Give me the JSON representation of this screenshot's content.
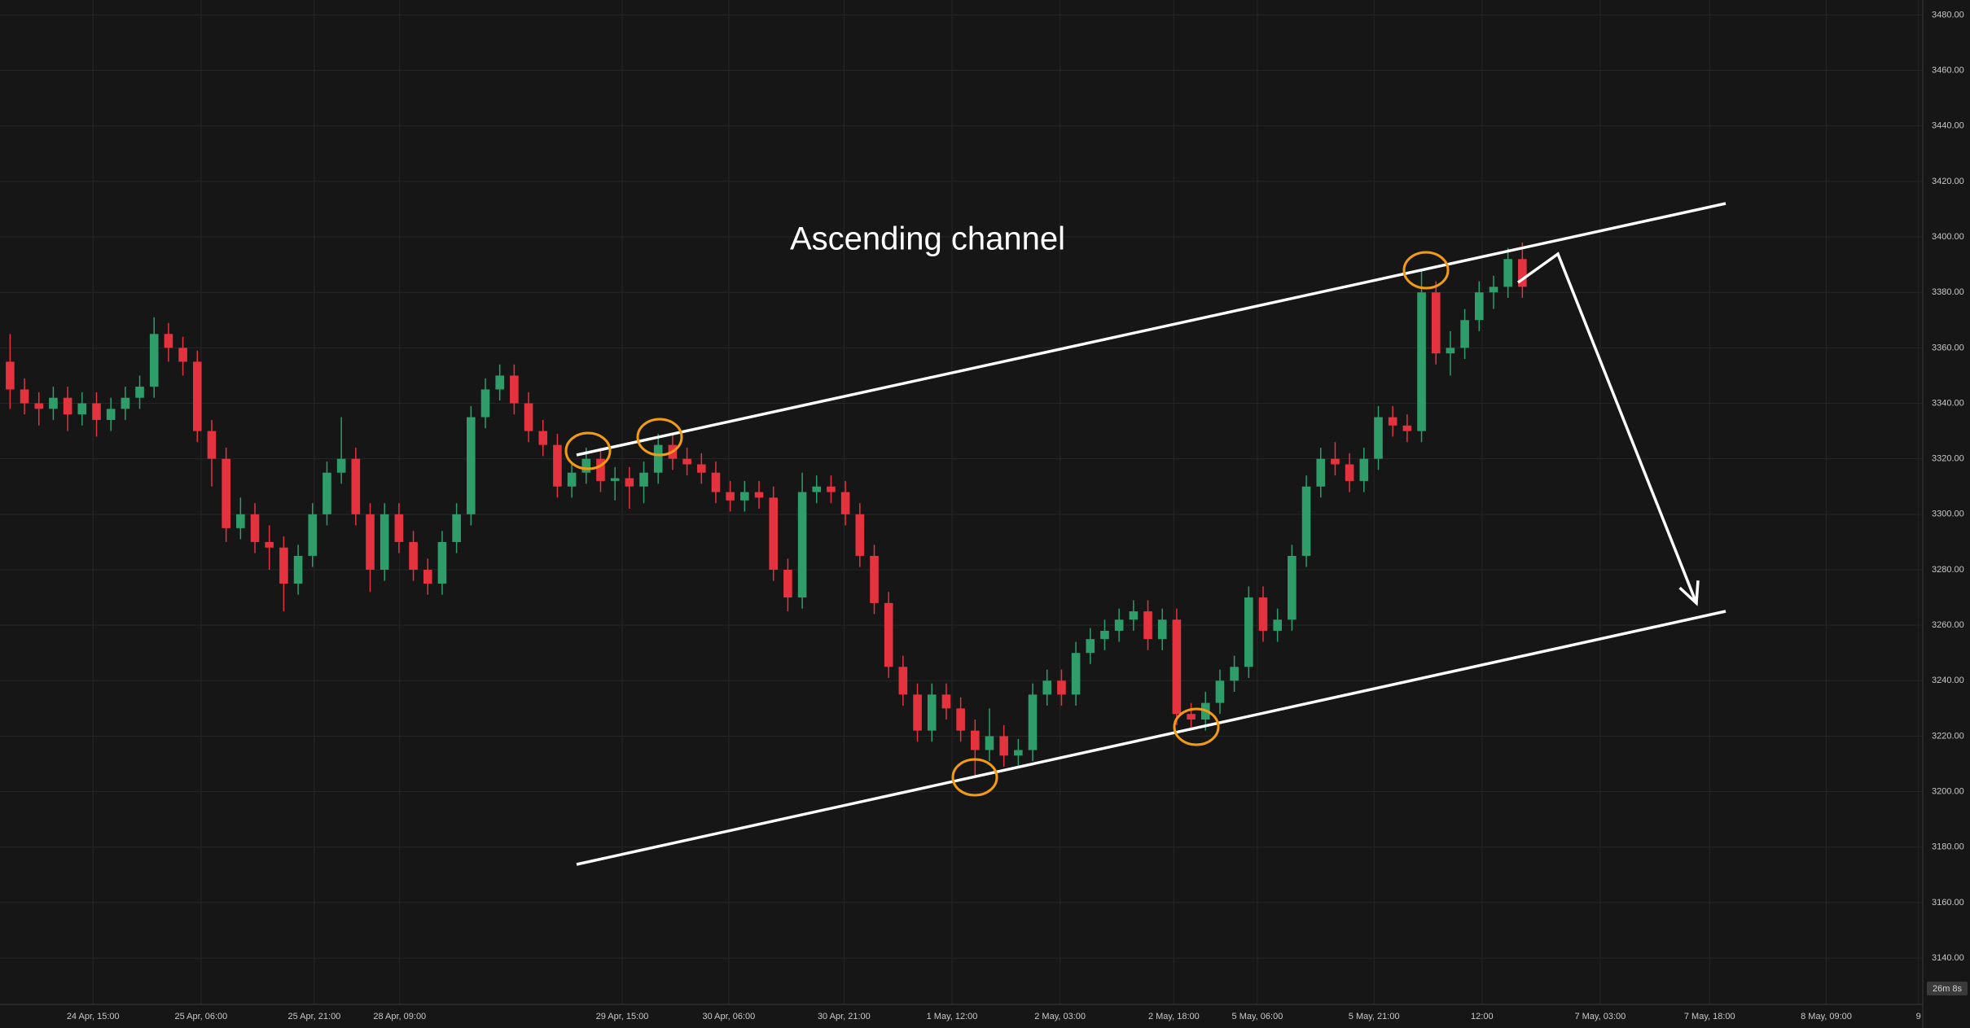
{
  "chart_data": {
    "type": "candlestick",
    "annotation": "Ascending channel",
    "countdown": "26m 8s",
    "up_color": "#2e9d6a",
    "down_color": "#e5323f",
    "grid": true,
    "open": [
      3355,
      3345,
      3340,
      3338,
      3342,
      3336,
      3340,
      3334,
      3338,
      3342,
      3346,
      3365,
      3360,
      3355,
      3330,
      3320,
      3295,
      3300,
      3290,
      3288,
      3275,
      3285,
      3300,
      3315,
      3320,
      3300,
      3280,
      3300,
      3290,
      3280,
      3275,
      3290,
      3300,
      3335,
      3345,
      3350,
      3340,
      3330,
      3325,
      3310,
      3315,
      3320,
      3312,
      3313,
      3310,
      3315,
      3325,
      3320,
      3318,
      3315,
      3308,
      3305,
      3308,
      3306,
      3280,
      3270,
      3308,
      3310,
      3308,
      3300,
      3285,
      3268,
      3245,
      3235,
      3222,
      3235,
      3230,
      3222,
      3215,
      3220,
      3213,
      3215,
      3235,
      3240,
      3235,
      3250,
      3255,
      3258,
      3262,
      3265,
      3255,
      3262,
      3228,
      3226,
      3232,
      3240,
      3245,
      3270,
      3258,
      3262,
      3285,
      3310,
      3320,
      3318,
      3312,
      3320,
      3335,
      3332,
      3330,
      3380,
      3358,
      3360,
      3370,
      3380,
      3382,
      3392
    ],
    "high": [
      3365,
      3349,
      3344,
      3346,
      3346,
      3344,
      3344,
      3342,
      3346,
      3350,
      3371,
      3369,
      3364,
      3359,
      3334,
      3324,
      3306,
      3304,
      3296,
      3292,
      3289,
      3304,
      3319,
      3335,
      3324,
      3304,
      3304,
      3304,
      3294,
      3284,
      3294,
      3304,
      3339,
      3349,
      3354,
      3354,
      3344,
      3334,
      3329,
      3319,
      3324,
      3324,
      3317,
      3317,
      3319,
      3329,
      3329,
      3324,
      3322,
      3319,
      3312,
      3312,
      3312,
      3310,
      3284,
      3315,
      3314,
      3314,
      3312,
      3304,
      3289,
      3272,
      3249,
      3239,
      3239,
      3239,
      3234,
      3226,
      3230,
      3224,
      3219,
      3239,
      3244,
      3244,
      3254,
      3259,
      3262,
      3266,
      3269,
      3269,
      3266,
      3266,
      3232,
      3236,
      3244,
      3249,
      3274,
      3274,
      3266,
      3289,
      3314,
      3324,
      3326,
      3322,
      3324,
      3339,
      3339,
      3336,
      3388,
      3384,
      3366,
      3374,
      3384,
      3386,
      3396,
      3398
    ],
    "low": [
      3338,
      3336,
      3332,
      3334,
      3330,
      3332,
      3328,
      3330,
      3334,
      3338,
      3342,
      3355,
      3350,
      3326,
      3310,
      3290,
      3291,
      3286,
      3280,
      3265,
      3271,
      3281,
      3296,
      3311,
      3296,
      3272,
      3276,
      3286,
      3276,
      3271,
      3271,
      3286,
      3296,
      3331,
      3341,
      3336,
      3326,
      3321,
      3306,
      3306,
      3311,
      3308,
      3305,
      3302,
      3304,
      3311,
      3316,
      3314,
      3311,
      3304,
      3301,
      3301,
      3302,
      3276,
      3265,
      3266,
      3304,
      3304,
      3296,
      3281,
      3264,
      3241,
      3231,
      3218,
      3218,
      3226,
      3218,
      3205,
      3211,
      3209,
      3209,
      3211,
      3231,
      3231,
      3231,
      3246,
      3251,
      3254,
      3258,
      3251,
      3251,
      3224,
      3222,
      3222,
      3228,
      3236,
      3241,
      3254,
      3254,
      3258,
      3281,
      3306,
      3314,
      3308,
      3308,
      3316,
      3328,
      3326,
      3326,
      3354,
      3350,
      3356,
      3366,
      3374,
      3378,
      3378
    ],
    "close": [
      3345,
      3340,
      3338,
      3342,
      3336,
      3340,
      3334,
      3338,
      3342,
      3346,
      3365,
      3360,
      3355,
      3330,
      3320,
      3295,
      3300,
      3290,
      3288,
      3275,
      3285,
      3300,
      3315,
      3320,
      3300,
      3280,
      3300,
      3290,
      3280,
      3275,
      3290,
      3300,
      3335,
      3345,
      3350,
      3340,
      3330,
      3325,
      3310,
      3315,
      3320,
      3312,
      3313,
      3310,
      3315,
      3325,
      3320,
      3318,
      3315,
      3308,
      3305,
      3308,
      3306,
      3280,
      3270,
      3308,
      3310,
      3308,
      3300,
      3285,
      3268,
      3245,
      3235,
      3222,
      3235,
      3230,
      3222,
      3215,
      3220,
      3213,
      3215,
      3235,
      3240,
      3235,
      3250,
      3255,
      3258,
      3262,
      3265,
      3255,
      3262,
      3228,
      3226,
      3232,
      3240,
      3245,
      3270,
      3258,
      3262,
      3285,
      3310,
      3320,
      3318,
      3312,
      3320,
      3335,
      3332,
      3330,
      3380,
      3358,
      3360,
      3370,
      3380,
      3382,
      3392,
      3382
    ],
    "xlim": [
      -0.7,
      132.8
    ],
    "xticks": [
      {
        "value": 5.76,
        "label": "24 Apr, 15:00"
      },
      {
        "value": 13.26,
        "label": "25 Apr, 06:00"
      },
      {
        "value": 21.12,
        "label": "25 Apr, 21:00"
      },
      {
        "value": 27.05,
        "label": "28 Apr, 09:00"
      },
      {
        "value": 42.5,
        "label": "29 Apr, 15:00"
      },
      {
        "value": 49.9,
        "label": "30 Apr, 06:00"
      },
      {
        "value": 57.9,
        "label": "30 Apr, 21:00"
      },
      {
        "value": 65.4,
        "label": "1 May, 12:00"
      },
      {
        "value": 72.9,
        "label": "2 May, 03:00"
      },
      {
        "value": 80.8,
        "label": "2 May, 18:00"
      },
      {
        "value": 86.6,
        "label": "5 May, 06:00"
      },
      {
        "value": 94.7,
        "label": "5 May, 21:00"
      },
      {
        "value": 102.2,
        "label": "12:00"
      },
      {
        "value": 110.4,
        "label": "7 May, 03:00"
      },
      {
        "value": 118.0,
        "label": "7 May, 18:00"
      },
      {
        "value": 126.1,
        "label": "8 May, 09:00"
      },
      {
        "value": 132.5,
        "label": "9"
      }
    ],
    "ylim": [
      3123.3,
      3485.4
    ],
    "yticks": [
      {
        "value": 3140,
        "label": "3140.00"
      },
      {
        "value": 3160,
        "label": "3160.00"
      },
      {
        "value": 3180,
        "label": "3180.00"
      },
      {
        "value": 3200,
        "label": "3200.00"
      },
      {
        "value": 3220,
        "label": "3220.00"
      },
      {
        "value": 3240,
        "label": "3240.00"
      },
      {
        "value": 3260,
        "label": "3260.00"
      },
      {
        "value": 3280,
        "label": "3280.00"
      },
      {
        "value": 3300,
        "label": "3300.00"
      },
      {
        "value": 3320,
        "label": "3320.00"
      },
      {
        "value": 3340,
        "label": "3340.00"
      },
      {
        "value": 3360,
        "label": "3360.00"
      },
      {
        "value": 3380,
        "label": "3380.00"
      },
      {
        "value": 3400,
        "label": "3400.00"
      },
      {
        "value": 3420,
        "label": "3420.00"
      },
      {
        "value": 3440,
        "label": "3440.00"
      },
      {
        "value": 3460,
        "label": "3460.00"
      },
      {
        "value": 3480,
        "label": "3480.00"
      }
    ]
  }
}
